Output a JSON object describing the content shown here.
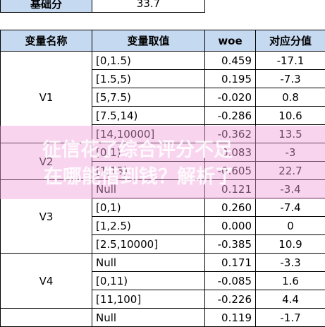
{
  "base": {
    "label": "基础分",
    "value": "33.7"
  },
  "table": {
    "headers": [
      "变量名称",
      "变量取值",
      "woe",
      "对应分值"
    ],
    "groups": [
      {
        "name": "V1",
        "rows": [
          [
            "[0,1.5)",
            "0.459",
            "-17.1"
          ],
          [
            "[1.5,5)",
            "0.195",
            "-7.3"
          ],
          [
            "[5,7.5)",
            "-0.020",
            "0.8"
          ],
          [
            "[7.5,14)",
            "-0.286",
            "10.6"
          ],
          [
            "[14,10000]",
            "-0.362",
            "13.5"
          ]
        ]
      },
      {
        "name": "V2",
        "rows": [
          [
            "[0,1)",
            "0.083",
            "-3"
          ],
          [
            "[1,13)",
            "-0.605",
            "22.7"
          ]
        ]
      },
      {
        "name": "V3",
        "rows": [
          [
            "Null",
            "0.121",
            "-3.4"
          ],
          [
            "[0,1)",
            "0.260",
            "-7.4"
          ],
          [
            "[1,2.5)",
            "0.000",
            "0"
          ],
          [
            "[2.5,10000]",
            "-0.385",
            "10.9"
          ]
        ]
      },
      {
        "name": "V4",
        "rows": [
          [
            "Null",
            "0.171",
            "-3.3"
          ],
          [
            "[0,11)",
            "-0.085",
            "1.6"
          ],
          [
            "[11,100]",
            "-0.226",
            "4.4"
          ]
        ]
      },
      {
        "rows": [
          [
            "Null",
            "0.119",
            "-1.7"
          ]
        ]
      }
    ]
  },
  "watermark": [
    "征信花了综合评分不足",
    "在哪能借到钱？解析了"
  ]
}
